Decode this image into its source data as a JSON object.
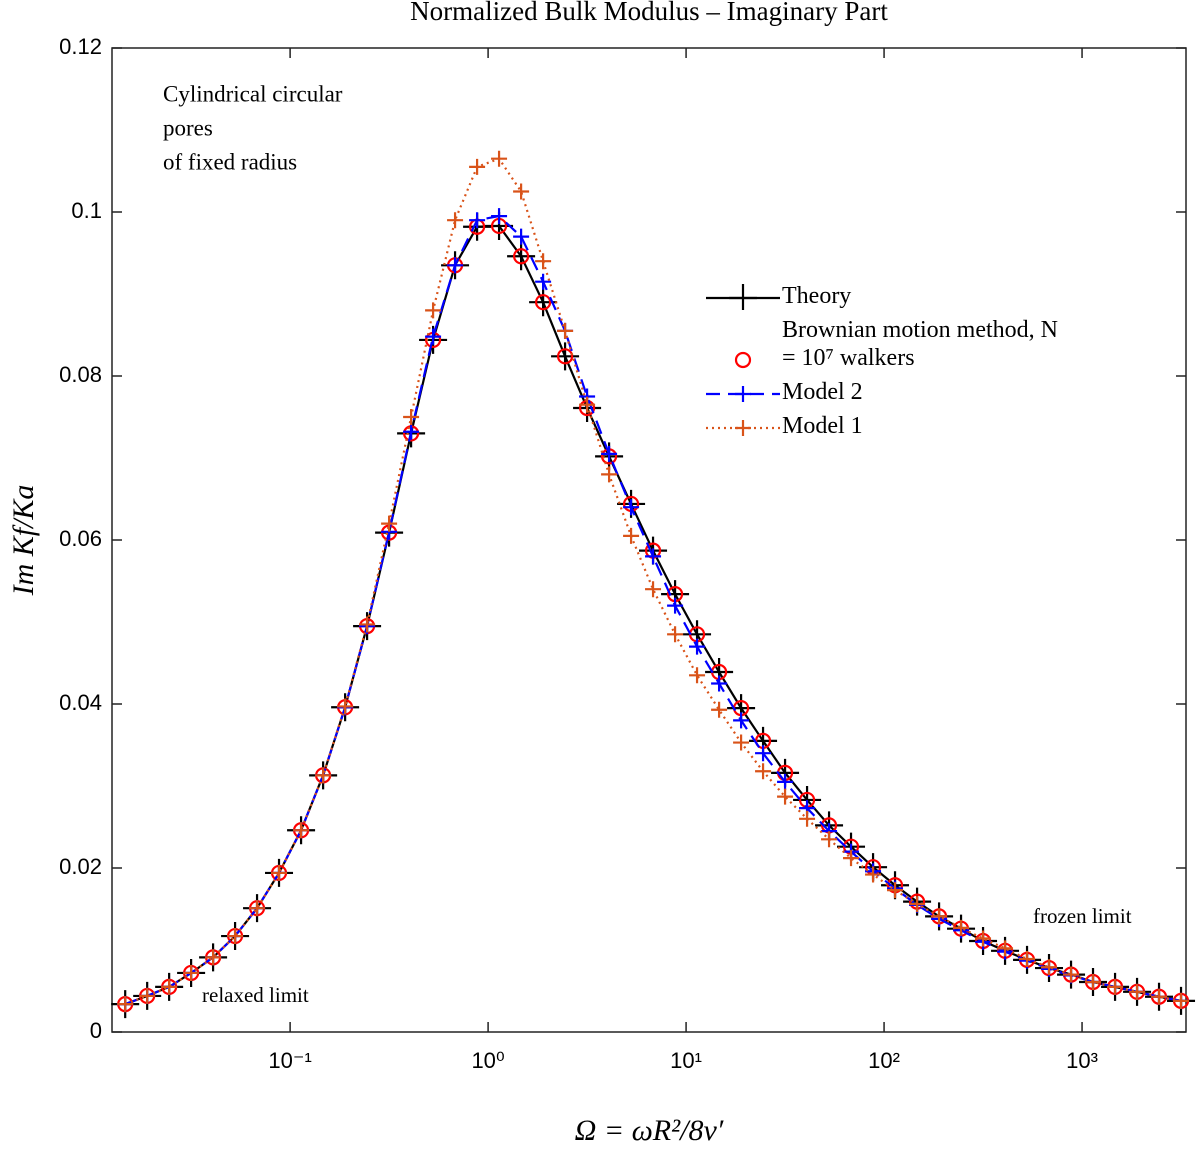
{
  "chart_data": {
    "type": "line",
    "title": "Normalized Bulk Modulus – Imaginary Part",
    "x_label": "Ω = ωR²/8ν′",
    "y_label": "Im Kf/Ka",
    "annotations": {
      "pores": [
        "Cylindrical circular",
        "pores",
        "of fixed radius"
      ],
      "relaxed": "relaxed limit",
      "frozen": "frozen limit"
    },
    "x": [
      0.01469,
      0.01897,
      0.02449,
      0.03162,
      0.04083,
      0.05273,
      0.06808,
      0.0879,
      0.1136,
      0.1468,
      0.1896,
      0.2448,
      0.3162,
      0.4084,
      0.5274,
      0.681,
      0.8799,
      1.136,
      1.468,
      1.896,
      2.448,
      3.162,
      4.084,
      5.274,
      6.81,
      8.799,
      11.36,
      14.68,
      18.96,
      24.48,
      31.62,
      40.84,
      52.74,
      68.1,
      87.99,
      113.6,
      146.8,
      189.6,
      244.8,
      316.2,
      408.4,
      527.4,
      681,
      879.9,
      1136,
      1468,
      1896,
      2448,
      3162
    ],
    "series": [
      {
        "name": "Theory",
        "color": "#000000",
        "style": "solid",
        "marker": "plus",
        "values": [
          0.0034,
          0.0044,
          0.0055,
          0.0072,
          0.0091,
          0.0117,
          0.0151,
          0.0194,
          0.0246,
          0.0313,
          0.0396,
          0.0495,
          0.0609,
          0.073,
          0.0844,
          0.0935,
          0.0982,
          0.0983,
          0.0946,
          0.089,
          0.0824,
          0.0761,
          0.0702,
          0.0644,
          0.0587,
          0.0534,
          0.0485,
          0.0439,
          0.0395,
          0.0355,
          0.0316,
          0.0283,
          0.0252,
          0.0226,
          0.0201,
          0.0179,
          0.0159,
          0.0141,
          0.0126,
          0.0111,
          0.0099,
          0.0088,
          0.0078,
          0.007,
          0.0061,
          0.0055,
          0.0049,
          0.0043,
          0.0038
        ]
      },
      {
        "name": "Brownian motion method, N = 10⁷ walkers",
        "color": "#ff0000",
        "style": "none",
        "marker": "circle",
        "values": [
          0.0034,
          0.0044,
          0.0055,
          0.0072,
          0.0091,
          0.0117,
          0.0151,
          0.0194,
          0.0246,
          0.0313,
          0.0396,
          0.0495,
          0.0609,
          0.073,
          0.0844,
          0.0935,
          0.0982,
          0.0983,
          0.0946,
          0.089,
          0.0824,
          0.0761,
          0.0702,
          0.0644,
          0.0587,
          0.0534,
          0.0485,
          0.0439,
          0.0395,
          0.0355,
          0.0316,
          0.0283,
          0.0252,
          0.0226,
          0.0201,
          0.0179,
          0.0159,
          0.0141,
          0.0126,
          0.0111,
          0.0099,
          0.0088,
          0.0078,
          0.007,
          0.0061,
          0.0055,
          0.0049,
          0.0043,
          0.0038
        ]
      },
      {
        "name": "Model 2",
        "color": "#0000ff",
        "style": "dashed",
        "marker": "plus",
        "values": [
          0.0034,
          0.0044,
          0.0055,
          0.0072,
          0.0091,
          0.0117,
          0.0151,
          0.0194,
          0.0246,
          0.0313,
          0.0396,
          0.0495,
          0.061,
          0.0732,
          0.0848,
          0.0935,
          0.099,
          0.0995,
          0.097,
          0.0915,
          0.0855,
          0.0775,
          0.0705,
          0.064,
          0.058,
          0.052,
          0.047,
          0.0425,
          0.038,
          0.034,
          0.0305,
          0.0273,
          0.0245,
          0.022,
          0.0196,
          0.0175,
          0.0155,
          0.0138,
          0.0124,
          0.011,
          0.0098,
          0.0087,
          0.0077,
          0.0069,
          0.0061,
          0.0055,
          0.0049,
          0.0043,
          0.0038
        ]
      },
      {
        "name": "Model 1",
        "color": "#d95319",
        "style": "dotted",
        "marker": "plus",
        "values": [
          0.0034,
          0.0044,
          0.0055,
          0.0072,
          0.0091,
          0.0117,
          0.0151,
          0.0194,
          0.0246,
          0.0313,
          0.0397,
          0.0497,
          0.062,
          0.075,
          0.088,
          0.099,
          0.1055,
          0.1065,
          0.1025,
          0.094,
          0.0855,
          0.0765,
          0.068,
          0.0605,
          0.054,
          0.0485,
          0.0435,
          0.0393,
          0.0353,
          0.0318,
          0.0287,
          0.026,
          0.0235,
          0.0212,
          0.0192,
          0.0173,
          0.0156,
          0.0141,
          0.0127,
          0.0114,
          0.0102,
          0.0089,
          0.0079,
          0.007,
          0.0061,
          0.0055,
          0.0049,
          0.0043,
          0.0038
        ]
      }
    ],
    "xscale": "log",
    "xlim": [
      0.0126,
      3350
    ],
    "xticks": [
      {
        "value": 0.1,
        "label": "10⁻¹"
      },
      {
        "value": 1,
        "label": "10⁰"
      },
      {
        "value": 10,
        "label": "10¹"
      },
      {
        "value": 100,
        "label": "10²"
      },
      {
        "value": 1000,
        "label": "10³"
      }
    ],
    "ylim": [
      0,
      0.12
    ],
    "yticks": [
      0,
      0.02,
      0.04,
      0.06,
      0.08,
      0.1,
      0.12
    ],
    "grid": false,
    "legend": "upper right"
  }
}
